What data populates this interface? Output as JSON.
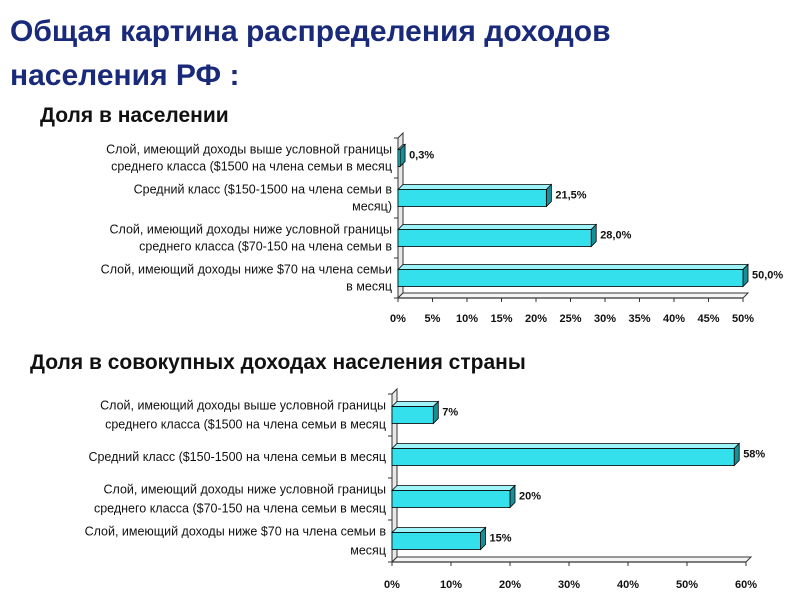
{
  "title": "Общая картина распределения доходов\nнаселения РФ :",
  "colors": {
    "bar_front": "#33e0ec",
    "bar_top": "#9ef4f8",
    "bar_side": "#1a8e96",
    "axis": "#333333",
    "title": "#1a2a7a"
  },
  "chart_data": [
    {
      "type": "bar",
      "orientation": "horizontal",
      "title": "Доля в населении",
      "categories": [
        [
          "Слой, имеющий доходы выше условной границы",
          "среднего класса ($1500 на члена семьи в месяц"
        ],
        [
          "Средний класс ($150-1500 на члена семьи в",
          "месяц)"
        ],
        [
          "Слой, имеющий доходы ниже условной границы",
          "среднего класса ($70-150 на члена семьи в"
        ],
        [
          "Слой, имеющий доходы ниже $70  на члена семьи",
          "в месяц"
        ]
      ],
      "values": [
        0.3,
        21.5,
        28.0,
        50.0
      ],
      "value_labels": [
        "0,3%",
        "21,5%",
        "28,0%",
        "50,0%"
      ],
      "x_ticks": [
        "0%",
        "5%",
        "10%",
        "15%",
        "20%",
        "25%",
        "30%",
        "35%",
        "40%",
        "45%",
        "50%"
      ],
      "xlim": [
        0,
        50
      ]
    },
    {
      "type": "bar",
      "orientation": "horizontal",
      "title": "Доля в совокупных доходах населения страны",
      "categories": [
        [
          "Слой, имеющий доходы выше условной границы",
          "среднего класса ($1500 на члена семьи в месяц"
        ],
        [
          "Средний класс ($150-1500 на члена семьи в месяц"
        ],
        [
          "Слой, имеющий доходы ниже условной границы",
          "среднего класса ($70-150 на члена семьи в месяц"
        ],
        [
          "Слой, имеющий доходы ниже $70  на члена семьи в",
          "месяц"
        ]
      ],
      "values": [
        7,
        58,
        20,
        15
      ],
      "value_labels": [
        "7%",
        "58%",
        "20%",
        "15%"
      ],
      "x_ticks": [
        "0%",
        "10%",
        "20%",
        "30%",
        "40%",
        "50%",
        "60%"
      ],
      "xlim": [
        0,
        60
      ]
    }
  ]
}
